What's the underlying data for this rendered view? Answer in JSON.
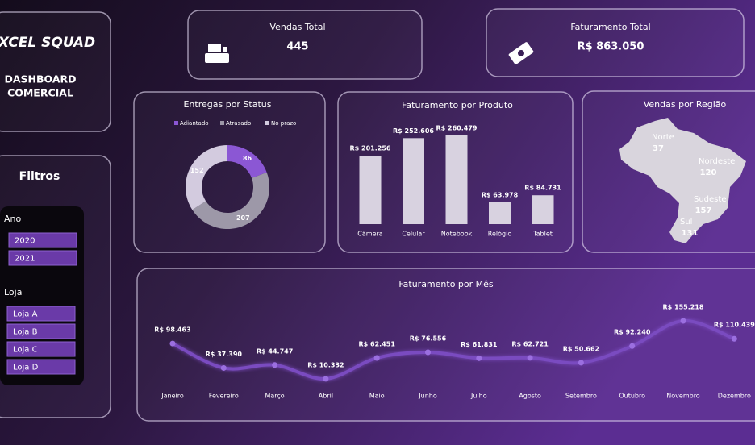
{
  "header": {
    "logo": "XCEL SQUAD",
    "title_line1": "DASHBOARD",
    "title_line2": "COMERCIAL"
  },
  "kpis": [
    {
      "label": "Vendas Total",
      "value": "445"
    },
    {
      "label": "Faturamento Total",
      "value": "R$ 863.050"
    }
  ],
  "filters": {
    "title": "Filtros",
    "groups": [
      {
        "label": "Ano",
        "options": [
          "2020",
          "2021"
        ]
      },
      {
        "label": "Loja",
        "options": [
          "Loja A",
          "Loja B",
          "Loja C",
          "Loja D"
        ]
      }
    ]
  },
  "chart_data": [
    {
      "type": "pie",
      "title": "Entregas por Status",
      "categories": [
        "Adiantado",
        "Atrasado",
        "No prazo"
      ],
      "values": [
        86,
        207,
        152
      ],
      "colors": [
        "#8b57d4",
        "#9d98a8",
        "#d3cbdf"
      ]
    },
    {
      "type": "bar",
      "title": "Faturamento por Produto",
      "categories": [
        "Câmera",
        "Celular",
        "Notebook",
        "Relógio",
        "Tablet"
      ],
      "values": [
        201256,
        252606,
        260479,
        63978,
        84731
      ],
      "value_labels": [
        "R$ 201.256",
        "R$ 252.606",
        "R$ 260.479",
        "R$ 63.978",
        "R$ 84.731"
      ],
      "color": "#d8d2e0"
    },
    {
      "type": "map",
      "title": "Vendas por Região",
      "categories": [
        "Norte",
        "Nordeste",
        "Sudeste",
        "Sul"
      ],
      "values": [
        37,
        120,
        157,
        131
      ],
      "color": "#d9d5dd"
    },
    {
      "type": "line",
      "title": "Faturamento por Mês",
      "categories": [
        "Janeiro",
        "Fevereiro",
        "Março",
        "Abril",
        "Maio",
        "Junho",
        "Julho",
        "Agosto",
        "Setembro",
        "Outubro",
        "Novembro",
        "Dezembro"
      ],
      "values": [
        98463,
        37390,
        44747,
        10332,
        62451,
        76556,
        61831,
        62721,
        50662,
        92240,
        155218,
        110439
      ],
      "value_labels": [
        "R$ 98.463",
        "R$ 37.390",
        "R$ 44.747",
        "R$ 10.332",
        "R$ 62.451",
        "R$ 76.556",
        "R$ 61.831",
        "R$ 62.721",
        "R$ 50.662",
        "R$ 92.240",
        "R$ 155.218",
        "R$ 110.439"
      ],
      "color": "#7a4cc0"
    }
  ]
}
